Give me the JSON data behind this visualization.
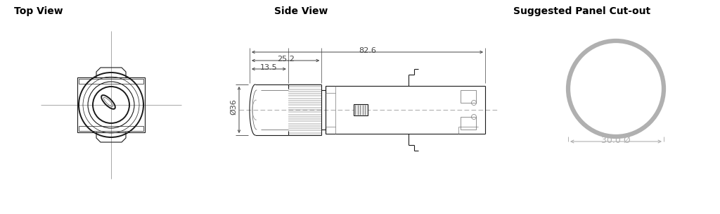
{
  "title_top_view": "Top View",
  "title_side_view": "Side View",
  "title_panel_cutout": "Suggested Panel Cut-out",
  "dim_diameter": "Ø36",
  "dim_135": "13.5",
  "dim_252": "25.2",
  "dim_826": "82.6",
  "dim_panel": "30.0 Ø",
  "line_color": "#1a1a1a",
  "dim_color": "#444444",
  "gray_color": "#b0b0b0",
  "bg_color": "#ffffff",
  "title_fontsize": 10,
  "dim_fontsize": 8
}
